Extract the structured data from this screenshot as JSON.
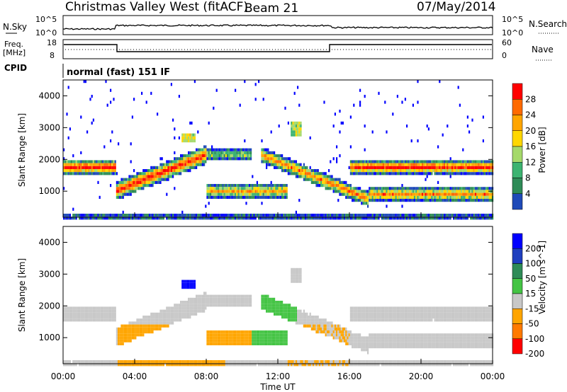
{
  "header": {
    "title": "Christmas Valley West (fitACF)",
    "beam": "Beam 21",
    "date": "07/May/2014"
  },
  "top_panels": {
    "nsky_label": "N.Sky",
    "nsky_ticks": [
      "10^5",
      "10^0"
    ],
    "nsearch_label": "N.Search",
    "nsearch_ticks": [
      "10^5",
      "10^0"
    ],
    "freq_label_1": "Freq.",
    "freq_label_2": "[MHz]",
    "freq_ticks": [
      "18",
      "8"
    ],
    "nave_label": "Nave",
    "nave_ticks": [
      "60",
      "0"
    ],
    "cpid_label": "CPID",
    "cpid_text": "normal (fast) 151 IF"
  },
  "chart_data": [
    {
      "type": "heatmap",
      "name": "power",
      "ylabel": "Slant Range [km]",
      "xlabel": "Time UT",
      "x_ticks": [
        "00:00",
        "04:00",
        "08:00",
        "12:00",
        "16:00",
        "20:00",
        "00:00"
      ],
      "y_ticks": [
        "1000",
        "2000",
        "3000",
        "4000"
      ],
      "ylim": [
        180,
        4500
      ],
      "colorbar_label": "Power [dB]",
      "colorbar_ticks": [
        "28",
        "24",
        "20",
        "16",
        "12",
        "8",
        "4"
      ],
      "colors": [
        "#ff0000",
        "#ff6a00",
        "#ffa500",
        "#ffd700",
        "#a5d96a",
        "#3cb371",
        "#2e8b57",
        "#1f4ab8",
        "#0000ff"
      ],
      "bands": [
        {
          "x": [
            0.0,
            2.9
          ],
          "y": [
            1700,
            1900
          ],
          "level": "high"
        },
        {
          "x": [
            2.9,
            8.0
          ],
          "y": [
            1050,
            2200
          ],
          "level": "high"
        },
        {
          "x": [
            8.0,
            12.5
          ],
          "y": [
            800,
            1300
          ],
          "level": "mid"
        },
        {
          "x": [
            13.0,
            17.0
          ],
          "y": [
            600,
            1400
          ],
          "level": "mid"
        },
        {
          "x": [
            16.0,
            24.0
          ],
          "y": [
            1750,
            1950
          ],
          "level": "high"
        },
        {
          "x": [
            17.0,
            24.0
          ],
          "y": [
            700,
            1200
          ],
          "level": "mid"
        }
      ]
    },
    {
      "type": "heatmap",
      "name": "velocity",
      "ylabel": "Slant Range [km]",
      "xlabel": "Time UT",
      "x_ticks": [
        "00:00",
        "04:00",
        "08:00",
        "12:00",
        "16:00",
        "20:00",
        "00:00"
      ],
      "y_ticks": [
        "1000",
        "2000",
        "3000",
        "4000"
      ],
      "ylim": [
        180,
        4500
      ],
      "colorbar_label": "Velocity [m s^-1]",
      "colorbar_ticks": [
        "200",
        "100",
        "50",
        "15",
        "-15",
        "-50",
        "-100",
        "-200"
      ],
      "colors": [
        "#0000ff",
        "#1f3fbf",
        "#2e8b57",
        "#44c444",
        "#c8c8c8",
        "#ffa500",
        "#ff7a00",
        "#ff0000"
      ]
    }
  ],
  "xaxis_title": "Time UT"
}
